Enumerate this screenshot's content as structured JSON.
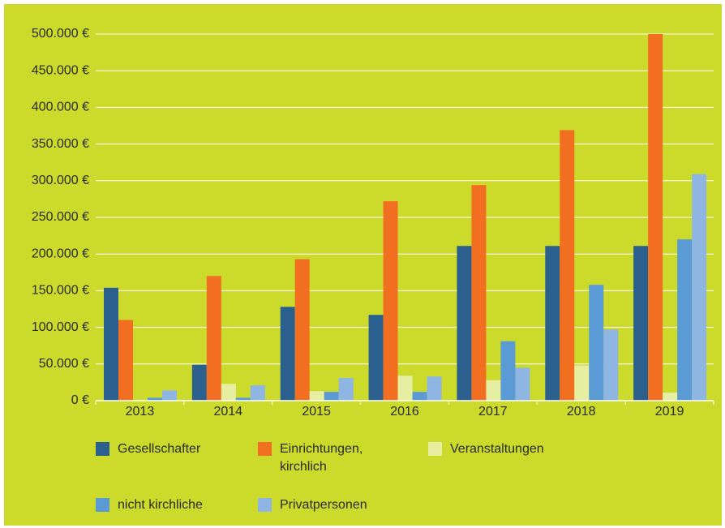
{
  "chart_data": {
    "type": "bar",
    "categories": [
      "2013",
      "2014",
      "2015",
      "2016",
      "2017",
      "2018",
      "2019"
    ],
    "series": [
      {
        "name": "Gesellschafter",
        "color": "#2b5f8e",
        "values": [
          154000,
          49000,
          128000,
          117000,
          211000,
          211000,
          211000
        ]
      },
      {
        "name": "Einrichtungen, kirchlich",
        "color": "#f26f22",
        "values": [
          110000,
          170000,
          193000,
          272000,
          294000,
          369000,
          500000
        ]
      },
      {
        "name": "Veranstaltungen",
        "color": "#e6eea2",
        "values": [
          0,
          23000,
          13000,
          34000,
          28000,
          48000,
          11000
        ]
      },
      {
        "name": "nicht kirchliche",
        "color": "#5b9bd5",
        "values": [
          4000,
          4000,
          12000,
          12000,
          81000,
          158000,
          220000
        ]
      },
      {
        "name": "Privatpersonen",
        "color": "#8fb6e3",
        "values": [
          14000,
          21000,
          31000,
          33000,
          45000,
          97000,
          309000
        ]
      }
    ],
    "ylim": [
      0,
      500000
    ],
    "yticks": [
      {
        "value": 0,
        "label": "0 €"
      },
      {
        "value": 50000,
        "label": "50.000 €"
      },
      {
        "value": 100000,
        "label": "100.000 €"
      },
      {
        "value": 150000,
        "label": "150.000 €"
      },
      {
        "value": 200000,
        "label": "200.000 €"
      },
      {
        "value": 250000,
        "label": "250.000 €"
      },
      {
        "value": 300000,
        "label": "300.000 €"
      },
      {
        "value": 350000,
        "label": "350.000 €"
      },
      {
        "value": 400000,
        "label": "400.000 €"
      },
      {
        "value": 450000,
        "label": "450.000 €"
      },
      {
        "value": 500000,
        "label": "500.000 €"
      }
    ],
    "grid": true
  }
}
